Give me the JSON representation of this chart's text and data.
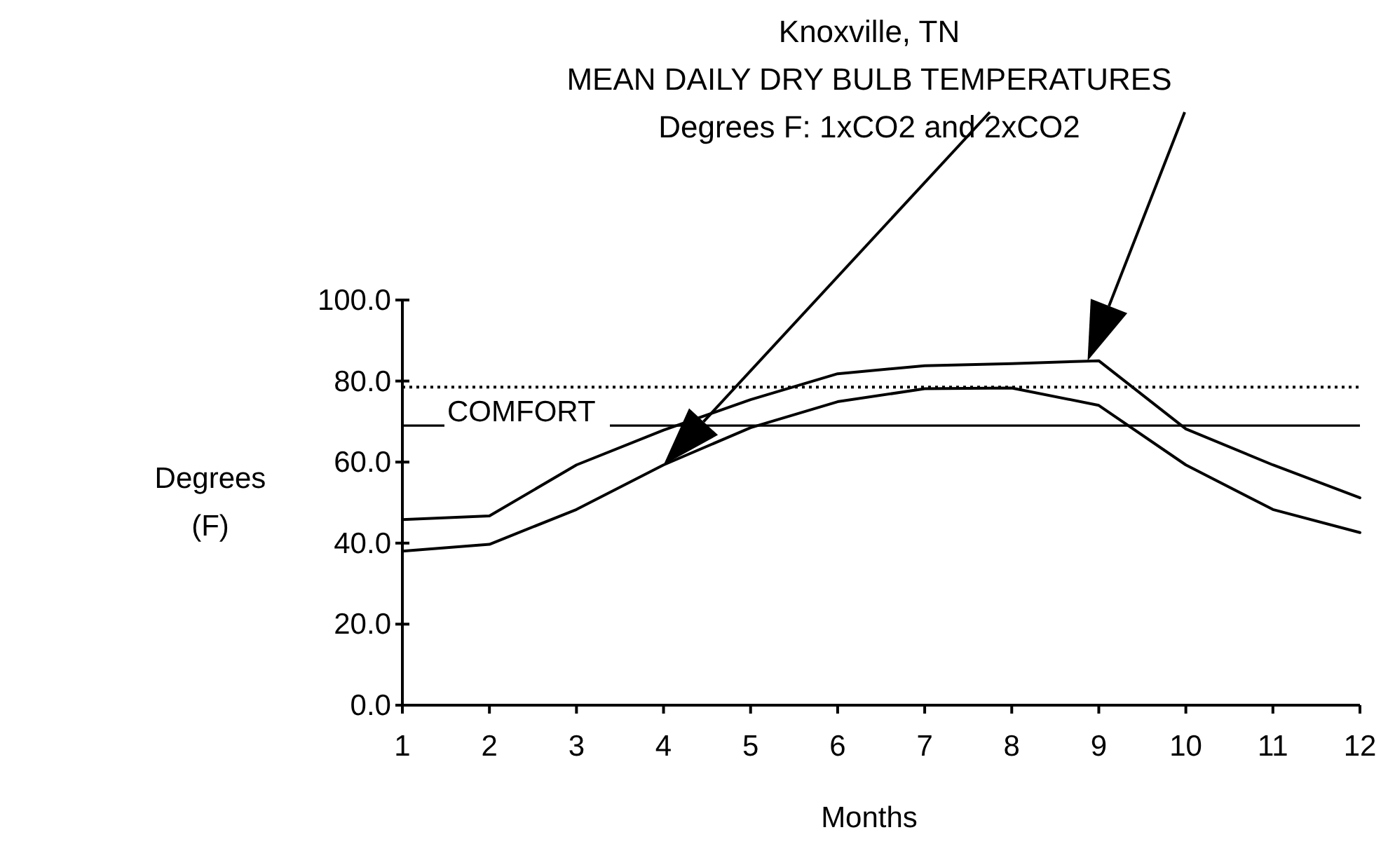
{
  "chart_data": {
    "type": "line",
    "title": "Knoxville, TN",
    "subtitle": "MEAN DAILY DRY BULB TEMPERATURES\nDegrees F:  1xCO2 and 2xCO2",
    "xlabel": "Months",
    "ylabel": "Degrees\n(F)",
    "x": [
      1,
      2,
      3,
      4,
      5,
      6,
      7,
      8,
      9,
      10,
      11,
      12
    ],
    "series": [
      {
        "color": "#000000",
        "values": [
          38,
          39.7,
          48.3,
          59.3,
          68.5,
          74.9,
          78.1,
          78.3,
          74,
          59.3,
          48.3,
          42.6
        ]
      },
      {
        "color": "#000000",
        "values": [
          45.8,
          46.7,
          59.3,
          67.9,
          75.4,
          81.8,
          83.8,
          84.3,
          85,
          68.2,
          59.3,
          51.2
        ]
      }
    ],
    "xlim": [
      1,
      12
    ],
    "xticks": [
      1,
      2,
      3,
      4,
      5,
      6,
      7,
      8,
      9,
      10,
      11,
      12
    ],
    "ylim": [
      0,
      100
    ],
    "yticks": [
      {
        "value": 0,
        "label": "0.0"
      },
      {
        "value": 20,
        "label": "20.0"
      },
      {
        "value": 40,
        "label": "40.0"
      },
      {
        "value": 60,
        "label": "60.0"
      },
      {
        "value": 80,
        "label": "80.0"
      },
      {
        "value": 100,
        "label": "100.0"
      }
    ],
    "ref_lines": [
      {
        "axis": "y",
        "value": 78.5,
        "line_style": "dotted",
        "color": "#000000"
      },
      {
        "axis": "y",
        "value": 69,
        "label": "COMFORT",
        "line_style": "solid",
        "color": "#000000"
      }
    ],
    "grid": false,
    "marker": "none",
    "line_style": "solid"
  }
}
